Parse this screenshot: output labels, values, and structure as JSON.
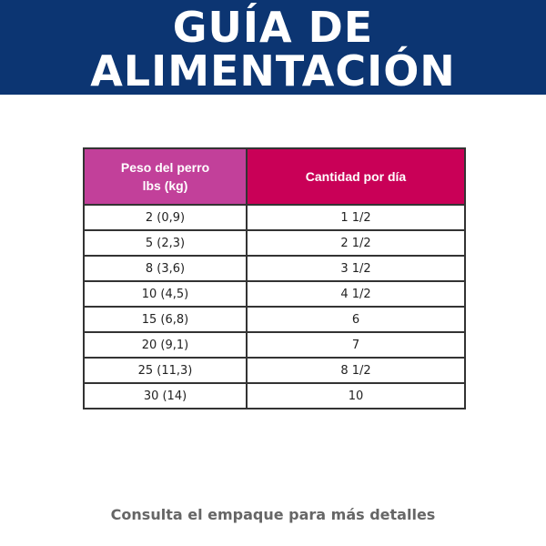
{
  "header": {
    "title": [
      "GUÍA DE",
      "ALIMENTACIÓN"
    ]
  },
  "table": {
    "columns": [
      [
        "Peso del perro",
        "lbs (kg)"
      ],
      "Cantidad por día"
    ],
    "rows": [
      [
        "2 (0,9)",
        "1 1/2"
      ],
      [
        "5 (2,3)",
        "2 1/2"
      ],
      [
        "8 (3,6)",
        "3 1/2"
      ],
      [
        "10 (4,5)",
        "4 1/2"
      ],
      [
        "15 (6,8)",
        "6"
      ],
      [
        "20 (9,1)",
        "7"
      ],
      [
        "25 (11,3)",
        "8 1/2"
      ],
      [
        "30 (14)",
        "10"
      ]
    ]
  },
  "footer": {
    "note": "Consulta el empaque para más detalles"
  }
}
